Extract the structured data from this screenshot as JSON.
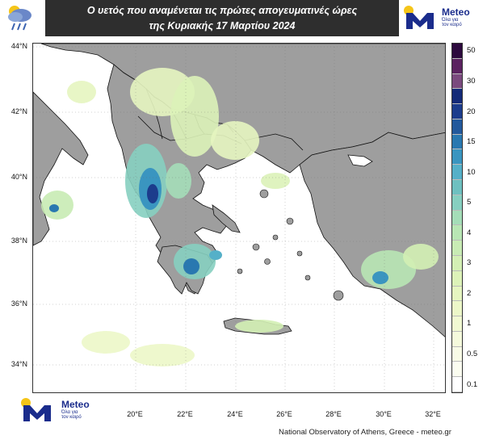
{
  "header": {
    "title_line1": "Ο υετός που αναμένεται τις πρώτες απογευματινές ώρες",
    "title_line2": "της Κυριακής 17 Μαρτίου 2024"
  },
  "logo": {
    "brand": "Meteo",
    "tagline_line1": "Όλα για",
    "tagline_line2": "τον καιρό",
    "icon": "meteo-m-logo-icon"
  },
  "weather_icon": "rain-cloud-icon",
  "map": {
    "latitudes": [
      "44°N",
      "42°N",
      "40°N",
      "38°N",
      "36°N",
      "34°N"
    ],
    "longitudes": [
      "20°E",
      "22°E",
      "24°E",
      "26°E",
      "28°E",
      "30°E",
      "32°E"
    ],
    "colors": {
      "land": "#9e9e9e",
      "sea": "#ffffff",
      "border": "#111111"
    }
  },
  "legend": {
    "levels": [
      {
        "label": "50",
        "color": "#2d0a3e"
      },
      {
        "label": "",
        "color": "#5b2360"
      },
      {
        "label": "30",
        "color": "#7a4a7e"
      },
      {
        "label": "",
        "color": "#142a78"
      },
      {
        "label": "20",
        "color": "#1c3c8c"
      },
      {
        "label": "",
        "color": "#23599c"
      },
      {
        "label": "15",
        "color": "#2978b0"
      },
      {
        "label": "",
        "color": "#3a95c0"
      },
      {
        "label": "10",
        "color": "#55b0c8"
      },
      {
        "label": "",
        "color": "#6ec0c0"
      },
      {
        "label": "5",
        "color": "#86cfc0"
      },
      {
        "label": "",
        "color": "#a4ddb8"
      },
      {
        "label": "4",
        "color": "#b8e6b4"
      },
      {
        "label": "",
        "color": "#c8ebb4"
      },
      {
        "label": "3",
        "color": "#d3efb4"
      },
      {
        "label": "",
        "color": "#dcf2b8"
      },
      {
        "label": "2",
        "color": "#e5f5c0"
      },
      {
        "label": "",
        "color": "#ecf7c8"
      },
      {
        "label": "1",
        "color": "#f1f9d2"
      },
      {
        "label": "",
        "color": "#f5fadc"
      },
      {
        "label": "0.5",
        "color": "#f8fbe6"
      },
      {
        "label": "",
        "color": "#fbfdf0"
      },
      {
        "label": "0.1",
        "color": "#ffffff"
      }
    ]
  },
  "credit": "National Observatory of Athens, Greece - meteo.gr"
}
